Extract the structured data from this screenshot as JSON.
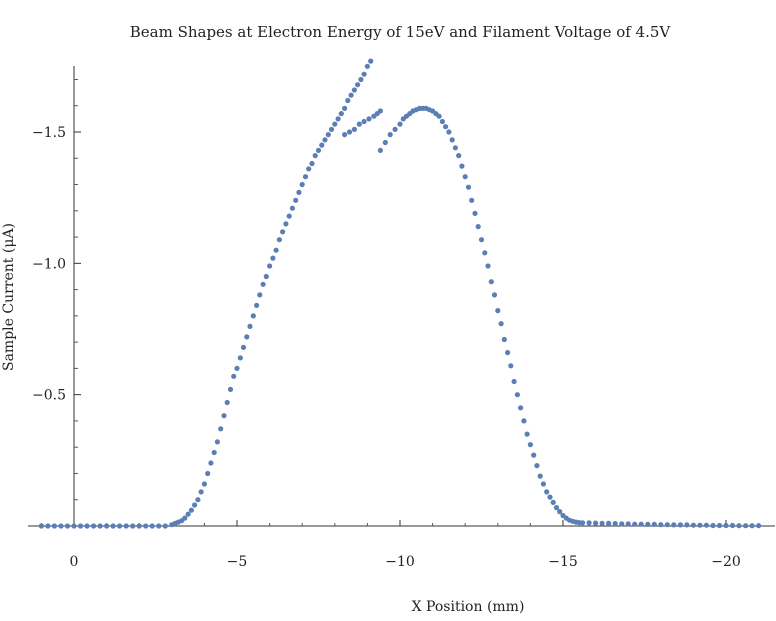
{
  "chart_data": {
    "type": "scatter",
    "title": "Beam Shapes at Electron Energy of 15eV and Filament Voltage of 4.5V",
    "xlabel": "X Position (mm)",
    "ylabel": "Sample Current (μA)",
    "xlim": [
      1.0,
      -21.2
    ],
    "ylim": [
      0.0,
      -1.75
    ],
    "x_ticks": [
      0,
      -5,
      -10,
      -15,
      -20
    ],
    "x_tick_labels": [
      "0",
      "−5",
      "−10",
      "−15",
      "−20"
    ],
    "y_ticks": [
      -1.5,
      -1.0,
      -0.5
    ],
    "y_tick_labels": [
      "−1.5",
      "−1.0",
      "−0.5"
    ],
    "marker_color": "#5b7fb5",
    "grid": false,
    "series": [
      {
        "values_note": "",
        "points": [
          [
            1.0,
            0.0
          ],
          [
            0.8,
            0.0
          ],
          [
            0.6,
            0.0
          ],
          [
            0.4,
            0.0
          ],
          [
            0.2,
            0.0
          ],
          [
            0.0,
            0.0
          ],
          [
            -0.2,
            0.0
          ],
          [
            -0.4,
            0.0
          ],
          [
            -0.6,
            0.0
          ],
          [
            -0.8,
            0.0
          ],
          [
            -1.0,
            0.0
          ],
          [
            -1.2,
            0.0
          ],
          [
            -1.4,
            0.0
          ],
          [
            -1.6,
            0.0
          ],
          [
            -1.8,
            0.0
          ],
          [
            -2.0,
            0.0
          ],
          [
            -2.2,
            0.0
          ],
          [
            -2.4,
            0.0
          ],
          [
            -2.6,
            0.0
          ],
          [
            -2.8,
            0.0
          ],
          [
            -3.0,
            -0.005
          ],
          [
            -3.1,
            -0.01
          ],
          [
            -3.2,
            -0.015
          ],
          [
            -3.3,
            -0.02
          ],
          [
            -3.4,
            -0.03
          ],
          [
            -3.5,
            -0.045
          ],
          [
            -3.6,
            -0.06
          ],
          [
            -3.7,
            -0.08
          ],
          [
            -3.8,
            -0.1
          ],
          [
            -3.9,
            -0.13
          ],
          [
            -4.0,
            -0.16
          ],
          [
            -4.1,
            -0.2
          ],
          [
            -4.2,
            -0.24
          ],
          [
            -4.3,
            -0.28
          ],
          [
            -4.4,
            -0.32
          ],
          [
            -4.5,
            -0.37
          ],
          [
            -4.6,
            -0.42
          ],
          [
            -4.7,
            -0.47
          ],
          [
            -4.8,
            -0.52
          ],
          [
            -4.9,
            -0.57
          ],
          [
            -5.0,
            -0.6
          ],
          [
            -5.1,
            -0.64
          ],
          [
            -5.2,
            -0.68
          ],
          [
            -5.3,
            -0.72
          ],
          [
            -5.4,
            -0.76
          ],
          [
            -5.5,
            -0.8
          ],
          [
            -5.6,
            -0.84
          ],
          [
            -5.7,
            -0.88
          ],
          [
            -5.8,
            -0.92
          ],
          [
            -5.9,
            -0.95
          ],
          [
            -6.0,
            -0.99
          ],
          [
            -6.1,
            -1.02
          ],
          [
            -6.2,
            -1.05
          ],
          [
            -6.3,
            -1.09
          ],
          [
            -6.4,
            -1.12
          ],
          [
            -6.5,
            -1.15
          ],
          [
            -6.6,
            -1.18
          ],
          [
            -6.7,
            -1.21
          ],
          [
            -6.8,
            -1.24
          ],
          [
            -6.9,
            -1.27
          ],
          [
            -7.0,
            -1.3
          ],
          [
            -7.1,
            -1.33
          ],
          [
            -7.2,
            -1.36
          ],
          [
            -7.3,
            -1.38
          ],
          [
            -7.4,
            -1.41
          ],
          [
            -7.5,
            -1.43
          ],
          [
            -7.6,
            -1.45
          ],
          [
            -7.7,
            -1.47
          ],
          [
            -7.8,
            -1.49
          ],
          [
            -7.9,
            -1.51
          ],
          [
            -8.0,
            -1.53
          ],
          [
            -8.1,
            -1.55
          ],
          [
            -8.2,
            -1.57
          ],
          [
            -8.3,
            -1.59
          ],
          [
            -8.4,
            -1.62
          ],
          [
            -8.5,
            -1.64
          ],
          [
            -8.6,
            -1.66
          ],
          [
            -8.7,
            -1.68
          ],
          [
            -8.8,
            -1.7
          ],
          [
            -8.9,
            -1.72
          ],
          [
            -9.0,
            -1.75
          ],
          [
            -9.1,
            -1.77
          ],
          [
            -9.2,
            -1.79
          ],
          [
            -9.3,
            -1.81
          ],
          [
            -9.4,
            -1.83
          ],
          [
            -8.3,
            -1.49
          ],
          [
            -8.45,
            -1.5
          ],
          [
            -8.6,
            -1.51
          ],
          [
            -8.75,
            -1.53
          ],
          [
            -8.9,
            -1.54
          ],
          [
            -9.05,
            -1.55
          ],
          [
            -9.2,
            -1.56
          ],
          [
            -9.3,
            -1.57
          ],
          [
            -9.4,
            -1.58
          ],
          [
            -9.4,
            -1.43
          ],
          [
            -9.55,
            -1.46
          ],
          [
            -9.7,
            -1.49
          ],
          [
            -9.85,
            -1.51
          ],
          [
            -10.0,
            -1.53
          ],
          [
            -10.1,
            -1.55
          ],
          [
            -10.2,
            -1.56
          ],
          [
            -10.3,
            -1.57
          ],
          [
            -10.4,
            -1.58
          ],
          [
            -10.5,
            -1.585
          ],
          [
            -10.6,
            -1.59
          ],
          [
            -10.7,
            -1.59
          ],
          [
            -10.8,
            -1.59
          ],
          [
            -10.9,
            -1.585
          ],
          [
            -11.0,
            -1.58
          ],
          [
            -11.1,
            -1.57
          ],
          [
            -11.2,
            -1.56
          ],
          [
            -11.3,
            -1.54
          ],
          [
            -11.4,
            -1.52
          ],
          [
            -11.5,
            -1.5
          ],
          [
            -11.6,
            -1.47
          ],
          [
            -11.7,
            -1.44
          ],
          [
            -11.8,
            -1.41
          ],
          [
            -11.9,
            -1.37
          ],
          [
            -12.0,
            -1.33
          ],
          [
            -12.1,
            -1.29
          ],
          [
            -12.2,
            -1.24
          ],
          [
            -12.3,
            -1.19
          ],
          [
            -12.4,
            -1.14
          ],
          [
            -12.5,
            -1.09
          ],
          [
            -12.6,
            -1.04
          ],
          [
            -12.7,
            -0.99
          ],
          [
            -12.8,
            -0.93
          ],
          [
            -12.9,
            -0.88
          ],
          [
            -13.0,
            -0.82
          ],
          [
            -13.1,
            -0.77
          ],
          [
            -13.2,
            -0.71
          ],
          [
            -13.3,
            -0.66
          ],
          [
            -13.4,
            -0.61
          ],
          [
            -13.5,
            -0.55
          ],
          [
            -13.6,
            -0.5
          ],
          [
            -13.7,
            -0.45
          ],
          [
            -13.8,
            -0.4
          ],
          [
            -13.9,
            -0.35
          ],
          [
            -14.0,
            -0.31
          ],
          [
            -14.1,
            -0.27
          ],
          [
            -14.2,
            -0.23
          ],
          [
            -14.3,
            -0.19
          ],
          [
            -14.4,
            -0.16
          ],
          [
            -14.5,
            -0.13
          ],
          [
            -14.6,
            -0.11
          ],
          [
            -14.7,
            -0.09
          ],
          [
            -14.8,
            -0.07
          ],
          [
            -14.9,
            -0.055
          ],
          [
            -15.0,
            -0.04
          ],
          [
            -15.1,
            -0.03
          ],
          [
            -15.2,
            -0.022
          ],
          [
            -15.3,
            -0.018
          ],
          [
            -15.4,
            -0.015
          ],
          [
            -15.5,
            -0.013
          ],
          [
            -15.6,
            -0.012
          ],
          [
            -15.8,
            -0.012
          ],
          [
            -16.0,
            -0.011
          ],
          [
            -16.2,
            -0.01
          ],
          [
            -16.4,
            -0.01
          ],
          [
            -16.6,
            -0.009
          ],
          [
            -16.8,
            -0.008
          ],
          [
            -17.0,
            -0.008
          ],
          [
            -17.2,
            -0.007
          ],
          [
            -17.4,
            -0.007
          ],
          [
            -17.6,
            -0.006
          ],
          [
            -17.8,
            -0.006
          ],
          [
            -18.0,
            -0.005
          ],
          [
            -18.2,
            -0.005
          ],
          [
            -18.4,
            -0.004
          ],
          [
            -18.6,
            -0.004
          ],
          [
            -18.8,
            -0.004
          ],
          [
            -19.0,
            -0.003
          ],
          [
            -19.2,
            -0.003
          ],
          [
            -19.4,
            -0.003
          ],
          [
            -19.6,
            -0.002
          ],
          [
            -19.8,
            -0.002
          ],
          [
            -20.0,
            -0.002
          ],
          [
            -20.2,
            -0.002
          ],
          [
            -20.4,
            -0.001
          ],
          [
            -20.6,
            -0.001
          ],
          [
            -20.8,
            -0.001
          ],
          [
            -21.0,
            -0.001
          ]
        ]
      }
    ]
  }
}
